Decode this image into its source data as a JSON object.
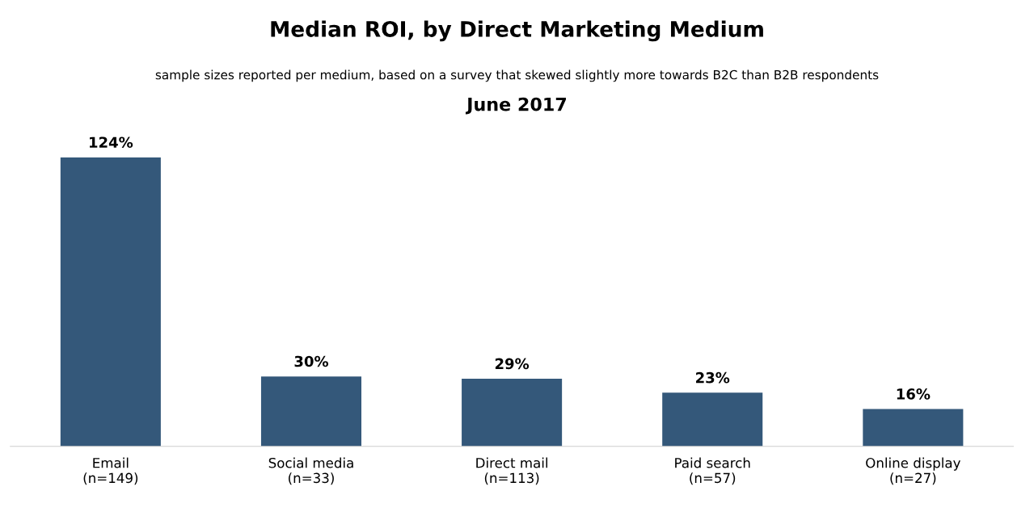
{
  "chart_data": {
    "type": "bar",
    "title": "Median ROI, by Direct Marketing Medium",
    "subtitle": "sample sizes reported per medium, based on a survey that skewed slightly more towards B2C than B2B respondents",
    "annotations": [
      "June 2017"
    ],
    "categories": [
      "Email\n(n=149)",
      "Social media\n(n=33)",
      "Direct mail\n(n=113)",
      "Paid search\n(n=57)",
      "Online display\n(n=27)"
    ],
    "values": [
      124,
      30,
      29,
      23,
      16
    ],
    "value_labels": [
      "124%",
      "30%",
      "29%",
      "23%",
      "16%"
    ],
    "color": "#34587a"
  }
}
